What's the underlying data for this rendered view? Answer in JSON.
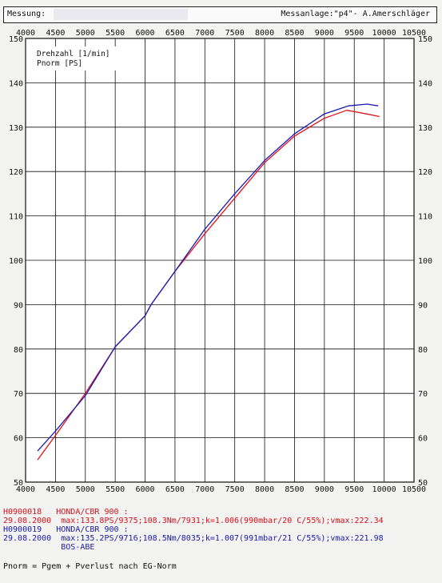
{
  "header": {
    "label": "Messung:",
    "right_text": "Messanlage:\"p4\"- A.Amerschläger"
  },
  "colors": {
    "red_series": "#e0101a",
    "blue_series": "#1a1ab8",
    "grid": "#111111"
  },
  "chart_data": {
    "type": "line",
    "xlim": [
      4000,
      10500
    ],
    "ylim": [
      50,
      150
    ],
    "x_ticks": [
      4000,
      4500,
      5000,
      5500,
      6000,
      6500,
      7000,
      7500,
      8000,
      8500,
      9000,
      9500,
      10000,
      10500
    ],
    "y_ticks": [
      50,
      60,
      70,
      80,
      90,
      100,
      110,
      120,
      130,
      140,
      150
    ],
    "legend": [
      "Drehzahl [1/min]",
      "Pnorm [PS]"
    ],
    "grid": true,
    "series": [
      {
        "color": "red",
        "x": [
          4200,
          4500,
          5000,
          5500,
          6000,
          6100,
          6500,
          7000,
          7500,
          8000,
          8500,
          9000,
          9375,
          9500,
          9700,
          9920
        ],
        "y": [
          55,
          60.5,
          70,
          80.5,
          87.5,
          90,
          97.5,
          106,
          114,
          122,
          128,
          132,
          133.8,
          133.5,
          133,
          132.4
        ]
      },
      {
        "color": "blue",
        "x": [
          4200,
          4500,
          5000,
          5500,
          6000,
          6100,
          6500,
          7000,
          7500,
          8000,
          8500,
          9000,
          9400,
          9716,
          9900
        ],
        "y": [
          57,
          61.5,
          69.5,
          80.5,
          87.5,
          90,
          97.5,
          107,
          115,
          122.5,
          128.5,
          133,
          134.8,
          135.2,
          134.8
        ]
      }
    ]
  },
  "footer": {
    "run1_id": "H0900018",
    "run1_model": "HONDA/CBR 900 :",
    "run1_date": "29.08.2000",
    "run1_stats": "max:133.8PS/9375;108.3Nm/7931;k=1.006(990mbar/20 C/55%);vmax:222.34",
    "run2_id": "H0900019",
    "run2_model": "HONDA/CBR 900 :",
    "run2_date": "29.08.2000",
    "run2_stats": "max:135.2PS/9716;108.5Nm/8035;k=1.007(991mbar/21 C/55%);vmax:221.98",
    "run2_note": "BOS-ABE",
    "norm_text": "Pnorm = Pgem + Pverlust nach EG-Norm"
  }
}
